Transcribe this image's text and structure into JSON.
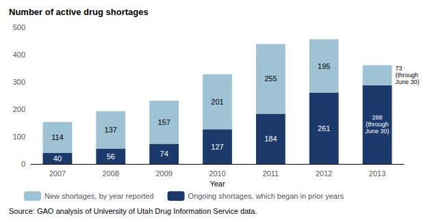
{
  "chart_data": {
    "type": "bar",
    "title": "Number of active drug shortages",
    "xlabel": "Year",
    "categories": [
      "2007",
      "2008",
      "2009",
      "2010",
      "2011",
      "2012",
      "2013"
    ],
    "stacked": true,
    "data_labels": true,
    "grid": false,
    "legend": "bottom",
    "series": [
      {
        "name": "Ongoing shortages, which began in prior years",
        "color": "#1B3A6B",
        "values": [
          40,
          56,
          74,
          127,
          184,
          261,
          288
        ],
        "value_labels": [
          "40",
          "56",
          "74",
          "127",
          "184",
          "261",
          "288\n(through\nJune 30)"
        ]
      },
      {
        "name": "New shortages, by year reported",
        "color": "#9DC3D4",
        "values": [
          114,
          137,
          157,
          201,
          255,
          195,
          73
        ],
        "value_labels": [
          "114",
          "137",
          "157",
          "201",
          "255",
          "195",
          "73\n(through\nJune 30)"
        ]
      }
    ],
    "ylim": [
      0,
      500
    ],
    "yticks": [
      0,
      100,
      200,
      300,
      400,
      500
    ],
    "annotations": [
      "Source: GAO analysis of University of Utah Drug Information Service data."
    ]
  }
}
